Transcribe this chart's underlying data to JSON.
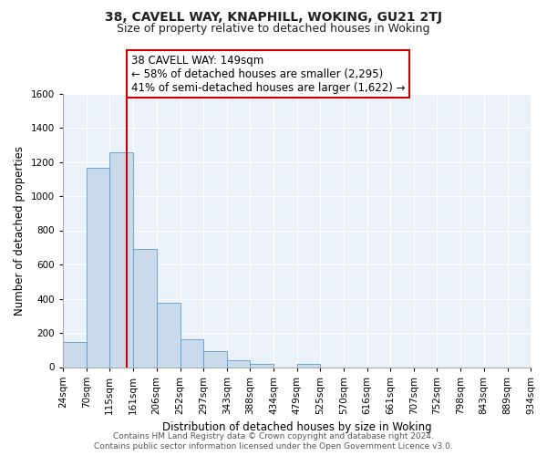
{
  "title": "38, CAVELL WAY, KNAPHILL, WOKING, GU21 2TJ",
  "subtitle": "Size of property relative to detached houses in Woking",
  "xlabel": "Distribution of detached houses by size in Woking",
  "ylabel": "Number of detached properties",
  "bar_edges": [
    24,
    70,
    115,
    161,
    206,
    252,
    297,
    343,
    388,
    434,
    479,
    525,
    570,
    616,
    661,
    707,
    752,
    798,
    843,
    889,
    934
  ],
  "bar_heights": [
    148,
    1165,
    1255,
    690,
    375,
    163,
    93,
    38,
    20,
    0,
    20,
    0,
    0,
    0,
    0,
    0,
    0,
    0,
    0,
    0
  ],
  "bar_color": "#c9daea",
  "bar_edge_color": "#5b9bd5",
  "property_line_x": 149,
  "property_line_color": "#cc0000",
  "annotation_line1": "38 CAVELL WAY: 149sqm",
  "annotation_line2": "← 58% of detached houses are smaller (2,295)",
  "annotation_line3": "41% of semi-detached houses are larger (1,622) →",
  "annotation_box_edgecolor": "#cc0000",
  "annotation_box_facecolor": "#ffffff",
  "ylim": [
    0,
    1600
  ],
  "yticks": [
    0,
    200,
    400,
    600,
    800,
    1000,
    1200,
    1400,
    1600
  ],
  "tick_labels": [
    "24sqm",
    "70sqm",
    "115sqm",
    "161sqm",
    "206sqm",
    "252sqm",
    "297sqm",
    "343sqm",
    "388sqm",
    "434sqm",
    "479sqm",
    "525sqm",
    "570sqm",
    "616sqm",
    "661sqm",
    "707sqm",
    "752sqm",
    "798sqm",
    "843sqm",
    "889sqm",
    "934sqm"
  ],
  "footer_text": "Contains HM Land Registry data © Crown copyright and database right 2024.\nContains public sector information licensed under the Open Government Licence v3.0.",
  "bg_color": "#eaf1f8",
  "fig_bg_color": "#ffffff",
  "grid_color": "#ffffff",
  "title_fontsize": 10,
  "subtitle_fontsize": 9,
  "axis_label_fontsize": 8.5,
  "tick_fontsize": 7.5,
  "annotation_fontsize": 8.5,
  "footer_fontsize": 6.5
}
